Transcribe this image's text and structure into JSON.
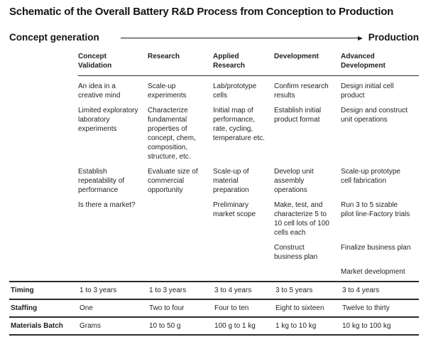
{
  "title": "Schematic of the Overall Battery R&D Process from Conception to Production",
  "flow": {
    "left_label": "Concept generation",
    "right_label": "Production",
    "arrow_icon": "right-arrow-icon"
  },
  "colors": {
    "background": "#ffffff",
    "text": "#1f1f1f",
    "rule": "#2b2b2b"
  },
  "table": {
    "columns": [
      "Concept Validation",
      "Research",
      "Applied Research",
      "Development",
      "Advanced Development"
    ],
    "body_rows": [
      [
        "An idea in a creative mind",
        "Scale-up experiments",
        "Lab/prototype cells",
        "Confirm research results",
        "Design initial cell product"
      ],
      [
        "Limited exploratory laboratory experiments",
        "Characterize fundamental properties of concept, chem, composition, structure, etc.",
        "Initial map of performance, rate, cycling, temperature etc.",
        "Establish initial product format",
        "Design and construct unit operations"
      ],
      [
        "Establish repeatability of performance",
        "Evaluate size of commercial opportunity",
        "Scale-up of material preparation",
        "Develop unit assembly operations",
        "Scale-up prototype cell fabrication"
      ],
      [
        "Is there a market?",
        "",
        "Preliminary market scope",
        "Make, test, and characterize 5 to 10 cell lots of 100 cells each",
        "Run 3 to 5 sizable pilot line-Factory trials"
      ],
      [
        "",
        "",
        "",
        "Construct business plan",
        "Finalize business plan"
      ],
      [
        "",
        "",
        "",
        "",
        "Market development"
      ]
    ],
    "summary_rows": [
      {
        "label": "Timing",
        "values": [
          "1 to 3 years",
          "1 to 3 years",
          "3 to 4 years",
          "3 to 5 years",
          "3 to 4 years"
        ]
      },
      {
        "label": "Staffing",
        "values": [
          "One",
          "Two to four",
          "Four to ten",
          "Eight to sixteen",
          "Twelve to thirty"
        ]
      },
      {
        "label": "Materials Batch",
        "values": [
          "Grams",
          "10 to 50 g",
          "100 g to 1 kg",
          "1 kg to 10 kg",
          "10 kg to 100 kg"
        ]
      }
    ]
  }
}
